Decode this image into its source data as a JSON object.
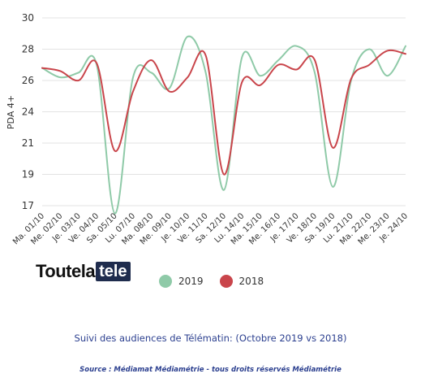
{
  "chart_data": {
    "type": "line",
    "ylabel": "PDA 4+",
    "yticks": [
      "30",
      "28",
      "26",
      "24",
      "21",
      "19",
      "17"
    ],
    "categories": [
      "Ma. 01/10",
      "Me. 02/10",
      "Je. 03/10",
      "Ve. 04/10",
      "Sa. 05/10",
      "Lu. 07/10",
      "Ma. 08/10",
      "Me. 09/10",
      "Je. 10/10",
      "Ve. 11/10",
      "Sa. 12/10",
      "Lu. 14/10",
      "Ma. 15/10",
      "Me. 16/10",
      "Je. 17/10",
      "Ve. 18/10",
      "Sa. 19/10",
      "Lu. 21/10",
      "Ma. 22/10",
      "Me. 23/10",
      "Je. 24/10"
    ],
    "series": [
      {
        "name": "2019",
        "color": "#8fcaa8",
        "values": [
          26.8,
          26.2,
          26.5,
          27.0,
          16.5,
          26.2,
          26.5,
          25.5,
          28.8,
          26.5,
          18.0,
          27.5,
          26.3,
          27.3,
          28.2,
          26.5,
          18.2,
          26.0,
          28.0,
          26.3,
          28.2
        ]
      },
      {
        "name": "2018",
        "color": "#c9454b",
        "values": [
          26.8,
          26.6,
          26.0,
          27.1,
          20.5,
          25.3,
          27.3,
          25.3,
          26.2,
          27.6,
          19.0,
          25.9,
          25.7,
          27.0,
          26.7,
          27.3,
          20.7,
          26.1,
          27.0,
          27.9,
          27.7
        ]
      }
    ],
    "grid": true,
    "legend": "bottom"
  },
  "logo": {
    "text_dark": "Toutela",
    "text_box": "tele"
  },
  "caption": "Suivi des audiences de Télématin: (Octobre 2019 vs 2018)",
  "source": "Source : Médiamat Médiamétrie - tous droits réservés Médiamétrie"
}
